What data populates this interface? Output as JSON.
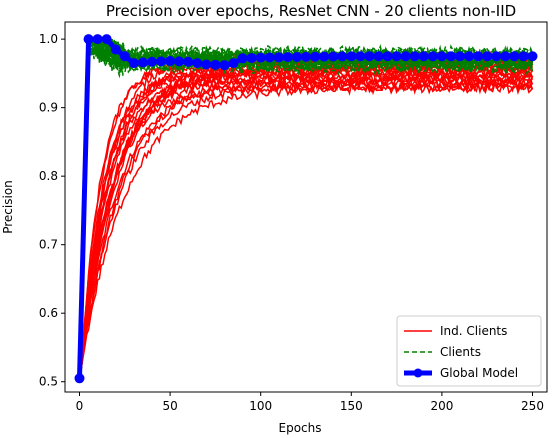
{
  "chart_data": {
    "type": "line",
    "title": "Precision over epochs, ResNet CNN - 20 clients non-IID",
    "xlabel": "Epochs",
    "ylabel": "Precision",
    "xlim": [
      -8,
      258
    ],
    "ylim": [
      0.485,
      1.025
    ],
    "xticks": [
      0,
      50,
      100,
      150,
      200,
      250
    ],
    "yticks": [
      0.5,
      0.6,
      0.7,
      0.8,
      0.9,
      1.0
    ],
    "ytick_labels": [
      "0.5",
      "0.6",
      "0.7",
      "0.8",
      "0.9",
      "1.0"
    ],
    "grid": false,
    "legend_position": "lower-right",
    "legend": [
      {
        "label": "Ind. Clients",
        "style": "solid",
        "color": "#ff0000"
      },
      {
        "label": "Clients",
        "style": "dashed",
        "color": "#008000"
      },
      {
        "label": "Global Model",
        "style": "solid-marker",
        "color": "#0000ff"
      }
    ],
    "series": [
      {
        "name": "Global Model",
        "color": "#0000ff",
        "x": [
          0,
          5,
          10,
          15,
          20,
          25,
          30,
          40,
          50,
          60,
          70,
          80,
          85,
          90,
          100,
          120,
          150,
          200,
          250
        ],
        "values": [
          0.505,
          1.0,
          1.0,
          1.0,
          0.985,
          0.975,
          0.965,
          0.967,
          0.968,
          0.967,
          0.963,
          0.962,
          0.965,
          0.972,
          0.973,
          0.974,
          0.975,
          0.975,
          0.975
        ]
      }
    ],
    "ind_clients": {
      "name": "Ind. Clients",
      "color": "#ff0000",
      "start": 0.52,
      "plateaus": [
        0.93,
        0.935,
        0.94,
        0.945,
        0.95,
        0.955,
        0.96,
        0.965,
        0.97,
        0.975,
        0.928,
        0.938,
        0.948,
        0.958,
        0.968,
        0.932,
        0.942,
        0.952,
        0.962,
        0.972
      ],
      "rise_rate": [
        0.06,
        0.05,
        0.07,
        0.045,
        0.08,
        0.055,
        0.065,
        0.09,
        0.05,
        0.07,
        0.04,
        0.06,
        0.075,
        0.05,
        0.085,
        0.045,
        0.065,
        0.055,
        0.07,
        0.06
      ],
      "noise": 0.006
    },
    "fed_clients": {
      "name": "Clients",
      "color": "#008000",
      "start": 0.55,
      "plateaus": [
        0.96,
        0.962,
        0.965,
        0.968,
        0.97,
        0.972,
        0.975,
        0.978,
        0.98,
        0.982,
        0.958,
        0.966,
        0.974,
        0.976,
        0.971,
        0.969,
        0.977,
        0.963,
        0.979,
        0.967
      ],
      "overshoot": 0.995,
      "noise": 0.008
    }
  }
}
